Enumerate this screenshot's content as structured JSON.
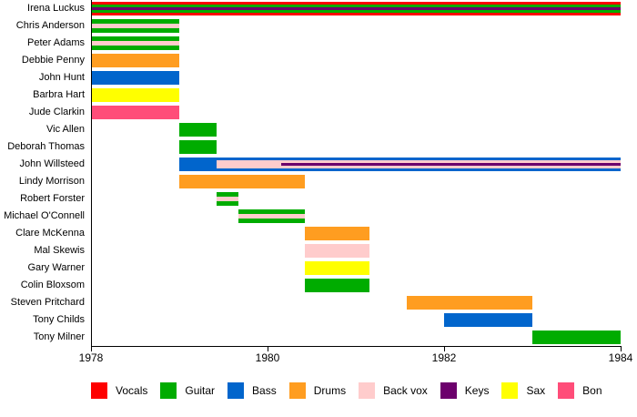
{
  "chart_data": {
    "type": "bar",
    "subtype": "gantt-member-timeline",
    "title": "",
    "xlabel": "",
    "ylabel": "",
    "x_axis": {
      "min": 1978,
      "max": 1984,
      "ticks": [
        1978,
        1980,
        1982,
        1984
      ],
      "grid": false
    },
    "legend_position": "bottom",
    "roles": {
      "vocals": {
        "label": "Vocals",
        "color": "#FE0000"
      },
      "guitar": {
        "label": "Guitar",
        "color": "#00AC00"
      },
      "bass": {
        "label": "Bass",
        "color": "#0165CC"
      },
      "drums": {
        "label": "Drums",
        "color": "#FF9D20"
      },
      "back_vox": {
        "label": "Back vox",
        "color": "#FFCCCC"
      },
      "keys": {
        "label": "Keys",
        "color": "#6C006C"
      },
      "sax": {
        "label": "Sax",
        "color": "#FFFF00"
      },
      "bongos": {
        "label": "Bon",
        "color": "#FF4D79"
      }
    },
    "legend_order": [
      "vocals",
      "guitar",
      "bass",
      "drums",
      "back_vox",
      "keys",
      "sax",
      "bongos"
    ],
    "members": [
      {
        "name": "Irena Luckus",
        "roles": [
          {
            "role": "vocals",
            "start": 1978,
            "end": 1984
          },
          {
            "role": "guitar",
            "start": 1978,
            "end": 1984
          },
          {
            "role": "keys",
            "start": 1978,
            "end": 1984
          }
        ]
      },
      {
        "name": "Chris Anderson",
        "roles": [
          {
            "role": "guitar",
            "start": 1978,
            "end": 1979
          },
          {
            "role": "back_vox",
            "start": 1978,
            "end": 1979
          }
        ]
      },
      {
        "name": "Peter Adams",
        "roles": [
          {
            "role": "guitar",
            "start": 1978,
            "end": 1979
          },
          {
            "role": "back_vox",
            "start": 1978,
            "end": 1979
          }
        ]
      },
      {
        "name": "Debbie Penny",
        "roles": [
          {
            "role": "drums",
            "start": 1978,
            "end": 1979
          }
        ]
      },
      {
        "name": "John Hunt",
        "roles": [
          {
            "role": "bass",
            "start": 1978,
            "end": 1979
          }
        ]
      },
      {
        "name": "Barbra Hart",
        "roles": [
          {
            "role": "sax",
            "start": 1978,
            "end": 1979
          }
        ]
      },
      {
        "name": "Jude Clarkin",
        "roles": [
          {
            "role": "bongos",
            "start": 1978,
            "end": 1979
          }
        ]
      },
      {
        "name": "Vic Allen",
        "roles": [
          {
            "role": "guitar",
            "start": 1979,
            "end": 1979.42
          }
        ]
      },
      {
        "name": "Deborah Thomas",
        "roles": [
          {
            "role": "guitar",
            "start": 1979,
            "end": 1979.42
          }
        ]
      },
      {
        "name": "John Willsteed",
        "roles": [
          {
            "role": "bass",
            "start": 1979,
            "end": 1984
          },
          {
            "role": "back_vox",
            "start": 1979.42,
            "end": 1984
          },
          {
            "role": "keys",
            "start": 1980.15,
            "end": 1984
          }
        ]
      },
      {
        "name": "Lindy Morrison",
        "roles": [
          {
            "role": "drums",
            "start": 1979,
            "end": 1980.42
          }
        ]
      },
      {
        "name": "Robert Forster",
        "roles": [
          {
            "role": "guitar",
            "start": 1979.42,
            "end": 1979.67
          },
          {
            "role": "back_vox",
            "start": 1979.42,
            "end": 1979.67
          }
        ]
      },
      {
        "name": "Michael O'Connell",
        "roles": [
          {
            "role": "guitar",
            "start": 1979.67,
            "end": 1980.42
          },
          {
            "role": "back_vox",
            "start": 1979.67,
            "end": 1980.42
          }
        ]
      },
      {
        "name": "Clare McKenna",
        "roles": [
          {
            "role": "drums",
            "start": 1980.42,
            "end": 1981.15
          }
        ]
      },
      {
        "name": "Mal Skewis",
        "roles": [
          {
            "role": "back_vox",
            "start": 1980.42,
            "end": 1981.15
          }
        ]
      },
      {
        "name": "Gary Warner",
        "roles": [
          {
            "role": "sax",
            "start": 1980.42,
            "end": 1981.15
          }
        ]
      },
      {
        "name": "Colin Bloxsom",
        "roles": [
          {
            "role": "guitar",
            "start": 1980.42,
            "end": 1981.15
          }
        ]
      },
      {
        "name": "Steven Pritchard",
        "roles": [
          {
            "role": "drums",
            "start": 1981.58,
            "end": 1983
          }
        ]
      },
      {
        "name": "Tony Childs",
        "roles": [
          {
            "role": "bass",
            "start": 1982,
            "end": 1983
          }
        ]
      },
      {
        "name": "Tony Milner",
        "roles": [
          {
            "role": "guitar",
            "start": 1983,
            "end": 1984
          }
        ]
      }
    ]
  }
}
